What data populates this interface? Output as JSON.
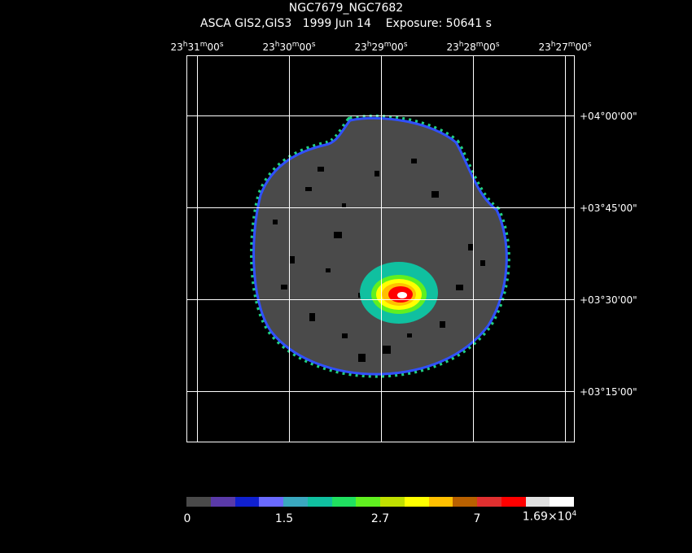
{
  "header": {
    "title": "NGC7679_NGC7682",
    "instrument": "ASCA GIS2,GIS3",
    "date": "1999 Jun 14",
    "exposure": "Exposure: 50641 s"
  },
  "ra_ticks": [
    {
      "h": "23",
      "m": "31",
      "s": "00"
    },
    {
      "h": "23",
      "m": "30",
      "s": "00"
    },
    {
      "h": "23",
      "m": "29",
      "s": "00"
    },
    {
      "h": "23",
      "m": "28",
      "s": "00"
    },
    {
      "h": "23",
      "m": "27",
      "s": "00"
    }
  ],
  "dec_ticks": [
    "+04°00'00\"",
    "+03°45'00\"",
    "+03°30'00\"",
    "+03°15'00\""
  ],
  "colorbar": {
    "colors": [
      "#4a4a4a",
      "#5a3aa8",
      "#1020d0",
      "#6a6aff",
      "#3aa8c0",
      "#10c0a0",
      "#20e060",
      "#60f020",
      "#c0e000",
      "#ffff00",
      "#ffc000",
      "#b86000",
      "#e03030",
      "#ff0000",
      "#e0e0e0",
      "#ffffff"
    ],
    "labels": [
      "0",
      "1.5",
      "2.7",
      "7"
    ],
    "max_label_mantissa": "1.69×10",
    "max_label_exponent": "4"
  }
}
